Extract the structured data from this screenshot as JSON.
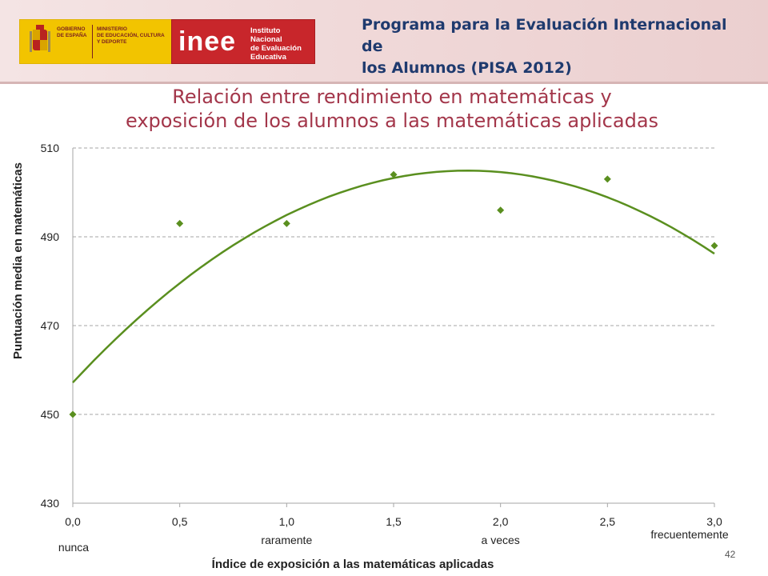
{
  "header": {
    "gov_logo": [
      "GOBIERNO",
      "DE ESPAÑA"
    ],
    "ministry_logo": [
      "MINISTERIO",
      "DE EDUCACIÓN, CULTURA",
      "Y DEPORTE"
    ],
    "inee_logo_word": "inee",
    "inee_logo_sub": [
      "Instituto Nacional",
      "de Evaluación",
      "Educativa"
    ],
    "program_title_line1": "Programa para la Evaluación Internacional de",
    "program_title_line2": "los Alumnos (PISA 2012)"
  },
  "page_number": "42",
  "colors": {
    "series": "#5a8f1f",
    "title": "#a3364a",
    "grid": "#a6a6a6",
    "program_title": "#1f3a6e"
  },
  "chart_data": {
    "type": "scatter",
    "title_line1": "Relación entre rendimiento en matemáticas y",
    "title_line2": "exposición de los alumnos a las matemáticas aplicadas",
    "xlabel": "Índice de exposición a las matemáticas aplicadas",
    "ylabel": "Puntuación media en matemáticas",
    "xlim": [
      0,
      3
    ],
    "ylim": [
      430,
      510
    ],
    "x_ticks": [
      "0,0",
      "0,5",
      "1,0",
      "1,5",
      "2,0",
      "2,5",
      "3,0"
    ],
    "x_tick_values": [
      0,
      0.5,
      1,
      1.5,
      2,
      2.5,
      3
    ],
    "y_ticks": [
      "430",
      "450",
      "470",
      "490",
      "510"
    ],
    "y_tick_values": [
      430,
      450,
      470,
      490,
      510
    ],
    "grid": "horizontal-dashed",
    "category_annotations": [
      {
        "text": "nunca",
        "x": 0
      },
      {
        "text": "raramente",
        "x": 1
      },
      {
        "text": "a veces",
        "x": 2
      },
      {
        "text": "frecuentemente",
        "x": 3
      }
    ],
    "series": [
      {
        "kind": "points",
        "marker": "diamond",
        "x": [
          0,
          0.5,
          1,
          1.5,
          2,
          2.5,
          3
        ],
        "y": [
          450,
          493,
          493,
          504,
          496,
          503,
          488
        ]
      },
      {
        "kind": "trendline",
        "fit": "quadratic",
        "x": [
          0,
          0.5,
          1,
          1.5,
          2,
          2.5,
          3
        ],
        "y": [
          457,
          479.5,
          495.5,
          503,
          504.5,
          498.5,
          486.5
        ]
      }
    ]
  }
}
